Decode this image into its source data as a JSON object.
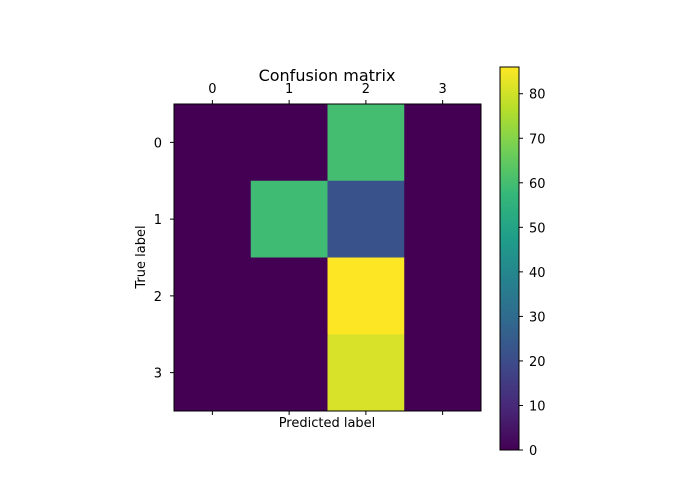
{
  "chart_data": {
    "type": "heatmap",
    "title": "Confusion matrix",
    "xlabel": "Predicted label",
    "ylabel": "True label",
    "x_categories": [
      "0",
      "1",
      "2",
      "3"
    ],
    "y_categories": [
      "0",
      "1",
      "2",
      "3"
    ],
    "x_tick_position": "top",
    "matrix": [
      [
        0,
        0,
        60,
        0
      ],
      [
        0,
        59,
        22,
        0
      ],
      [
        0,
        0,
        86,
        0
      ],
      [
        0,
        0,
        81,
        0
      ]
    ],
    "colormap": "viridis",
    "colorbar": {
      "range": [
        0,
        86
      ],
      "ticks": [
        0,
        10,
        20,
        30,
        40,
        50,
        60,
        70,
        80
      ]
    },
    "grid": false
  }
}
